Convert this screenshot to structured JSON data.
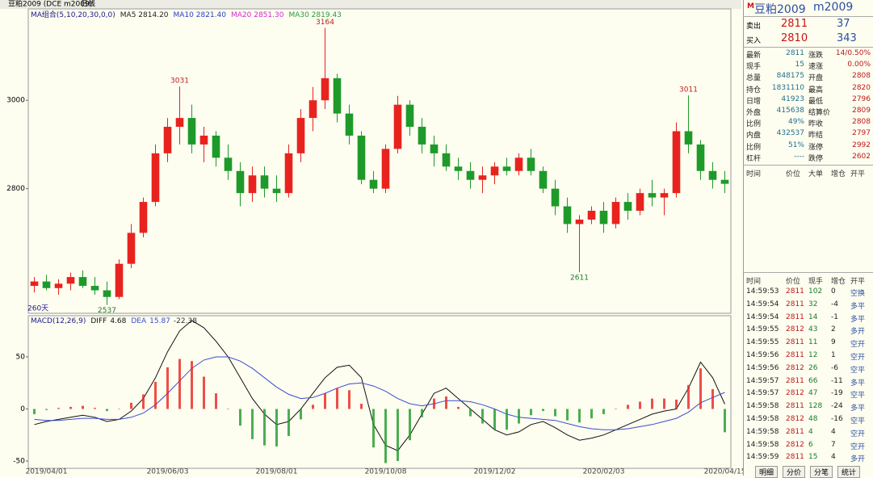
{
  "toolbar": {
    "symbol": "豆粕2009 (DCE m2009)",
    "period": "日线"
  },
  "chart_data": [
    {
      "type": "candlestick",
      "ma_labels": [
        {
          "label": "MA组合(5,10,20,30,0,0)",
          "color": "#1a1a8c"
        },
        {
          "label": "MA5 2814.20",
          "color": "#222222"
        },
        {
          "label": "MA10 2821.40",
          "color": "#2b3fc4"
        },
        {
          "label": "MA20 2851.30",
          "color": "#d22bd2"
        },
        {
          "label": "MA30 2819.43",
          "color": "#2a9a3a"
        }
      ],
      "period_label": "260天",
      "categories": [
        null,
        "2019/04/01",
        null,
        null,
        null,
        null,
        null,
        null,
        null,
        null,
        null,
        "2019/06/03",
        null,
        null,
        null,
        null,
        null,
        null,
        null,
        null,
        "2019/08/01",
        null,
        null,
        null,
        null,
        null,
        null,
        null,
        null,
        "2019/10/08",
        null,
        null,
        null,
        null,
        null,
        null,
        null,
        null,
        "2019/12/02",
        null,
        null,
        null,
        null,
        null,
        null,
        null,
        null,
        "2020/02/03",
        null,
        null,
        null,
        null,
        null,
        null,
        null,
        null,
        null,
        "2020/04/15"
      ],
      "open": [
        2580,
        2590,
        2575,
        2585,
        2600,
        2580,
        2570,
        2555,
        2630,
        2700,
        2770,
        2880,
        2940,
        2960,
        2900,
        2920,
        2870,
        2840,
        2790,
        2830,
        2800,
        2790,
        2880,
        2960,
        3000,
        3050,
        2970,
        2920,
        2820,
        2800,
        2890,
        2990,
        2940,
        2900,
        2880,
        2850,
        2840,
        2820,
        2830,
        2850,
        2840,
        2870,
        2840,
        2800,
        2760,
        2720,
        2730,
        2750,
        2720,
        2770,
        2750,
        2790,
        2780,
        2790,
        2930,
        2900,
        2840,
        2820
      ],
      "high": [
        2600,
        2605,
        2595,
        2610,
        2615,
        2600,
        2590,
        2640,
        2720,
        2780,
        2900,
        2960,
        3031,
        2990,
        2940,
        2930,
        2900,
        2860,
        2850,
        2850,
        2830,
        2900,
        2980,
        3030,
        3164,
        3060,
        2990,
        2930,
        2840,
        2900,
        3010,
        3000,
        2960,
        2920,
        2900,
        2870,
        2860,
        2850,
        2860,
        2870,
        2880,
        2890,
        2850,
        2820,
        2780,
        2740,
        2760,
        2770,
        2780,
        2790,
        2800,
        2820,
        2800,
        2950,
        3011,
        2910,
        2860,
        2840
      ],
      "low": [
        2565,
        2570,
        2560,
        2570,
        2575,
        2560,
        2537,
        2550,
        2620,
        2690,
        2760,
        2860,
        2900,
        2880,
        2860,
        2850,
        2820,
        2760,
        2770,
        2780,
        2770,
        2780,
        2860,
        2930,
        2980,
        2950,
        2900,
        2810,
        2790,
        2790,
        2880,
        2920,
        2880,
        2850,
        2840,
        2820,
        2800,
        2790,
        2810,
        2830,
        2830,
        2830,
        2790,
        2740,
        2700,
        2611,
        2720,
        2700,
        2710,
        2730,
        2740,
        2760,
        2740,
        2780,
        2880,
        2820,
        2800,
        2790
      ],
      "close": [
        2590,
        2575,
        2585,
        2600,
        2580,
        2570,
        2555,
        2630,
        2700,
        2770,
        2880,
        2940,
        2960,
        2900,
        2920,
        2870,
        2840,
        2790,
        2830,
        2800,
        2790,
        2880,
        2960,
        3000,
        3050,
        2970,
        2920,
        2820,
        2800,
        2890,
        2990,
        2940,
        2900,
        2880,
        2850,
        2840,
        2820,
        2830,
        2850,
        2840,
        2870,
        2840,
        2800,
        2760,
        2720,
        2730,
        2750,
        2720,
        2770,
        2750,
        2790,
        2780,
        2790,
        2930,
        2900,
        2840,
        2820,
        2811
      ],
      "up_color": "#e8231f",
      "down_color": "#1e9a2a",
      "ylim": [
        2518,
        3205
      ],
      "yticks": [
        2800,
        3000
      ]
    },
    {
      "type": "macd",
      "title": "MACD(12,26,9)",
      "series": [
        {
          "name": "DIFF",
          "type": "line",
          "color": "#111111",
          "values": [
            -15,
            -12,
            -10,
            -8,
            -6,
            -8,
            -12,
            -10,
            -2,
            10,
            30,
            55,
            75,
            85,
            78,
            65,
            50,
            30,
            10,
            -5,
            -15,
            -12,
            0,
            15,
            30,
            40,
            42,
            30,
            -15,
            -35,
            -40,
            -25,
            -5,
            15,
            20,
            10,
            0,
            -10,
            -20,
            -25,
            -22,
            -15,
            -12,
            -18,
            -25,
            -30,
            -28,
            -25,
            -20,
            -15,
            -10,
            -5,
            -2,
            0,
            20,
            45,
            30,
            4.68
          ]
        },
        {
          "name": "DEA",
          "type": "line",
          "color": "#3a4ccf",
          "values": [
            -10,
            -11,
            -11,
            -10,
            -9,
            -9,
            -10,
            -10,
            -8,
            -4,
            4,
            15,
            27,
            39,
            47,
            50,
            50,
            46,
            39,
            30,
            21,
            14,
            10,
            11,
            15,
            20,
            24,
            25,
            22,
            17,
            10,
            5,
            3,
            5,
            8,
            8,
            7,
            4,
            0,
            -5,
            -8,
            -9,
            -10,
            -11,
            -14,
            -17,
            -19,
            -20,
            -20,
            -19,
            -17,
            -15,
            -12,
            -9,
            -3,
            6,
            11,
            15.87
          ]
        },
        {
          "type": "bar",
          "up_color": "#e8231f",
          "down_color": "#1e9a2a",
          "values": [
            -5,
            -1,
            1,
            2,
            3,
            1,
            -2,
            0,
            6,
            14,
            26,
            40,
            48,
            46,
            31,
            15,
            0,
            -16,
            -29,
            -35,
            -36,
            -26,
            -10,
            4,
            15,
            20,
            18,
            5,
            -37,
            -52,
            -50,
            -30,
            -8,
            10,
            12,
            2,
            -7,
            -14,
            -20,
            -20,
            -14,
            -6,
            -2,
            -7,
            -11,
            -13,
            -9,
            -5,
            0,
            4,
            7,
            10,
            10,
            9,
            23,
            39,
            19,
            -22.38
          ]
        }
      ],
      "ylim": [
        -57,
        88
      ],
      "yticks": [
        -50,
        0,
        50
      ]
    }
  ],
  "quote": {
    "mark": "M",
    "title": "豆粕2009",
    "code": "m2009",
    "ask": [
      "卖出",
      "2811",
      "37"
    ],
    "bid": [
      "买入",
      "2810",
      "343"
    ],
    "fields": [
      [
        "最新",
        "2811",
        "涨跌",
        "14/0.50%"
      ],
      [
        "现手",
        "15",
        "速涨",
        "0.00%"
      ],
      [
        "总量",
        "848175",
        "开盘",
        "2808"
      ],
      [
        "持仓",
        "1831110",
        "最高",
        "2820"
      ],
      [
        "日增",
        "41923",
        "最低",
        "2796"
      ],
      [
        "外盘",
        "415638",
        "结算价",
        "2809"
      ],
      [
        "比例",
        "49%",
        "昨收",
        "2808"
      ],
      [
        "内盘",
        "432537",
        "昨结",
        "2797"
      ],
      [
        "比例",
        "51%",
        "涨停",
        "2992"
      ],
      [
        "杠杆",
        "----",
        "跌停",
        "2602"
      ]
    ],
    "big_header": [
      "时间",
      "价位",
      "大单",
      "增仓",
      "开平"
    ],
    "tick_header": [
      "时间",
      "价位",
      "现手",
      "增仓",
      "开平"
    ],
    "ticks": [
      [
        "14:59:53",
        "2811",
        "102",
        "0",
        "空换"
      ],
      [
        "14:59:54",
        "2811",
        "32",
        "-4",
        "多平"
      ],
      [
        "14:59:54",
        "2811",
        "14",
        "-1",
        "多平"
      ],
      [
        "14:59:55",
        "2812",
        "43",
        "2",
        "多开"
      ],
      [
        "14:59:55",
        "2811",
        "11",
        "9",
        "空开"
      ],
      [
        "14:59:56",
        "2811",
        "12",
        "1",
        "空开"
      ],
      [
        "14:59:56",
        "2812",
        "26",
        "-6",
        "空平"
      ],
      [
        "14:59:57",
        "2811",
        "66",
        "-11",
        "多平"
      ],
      [
        "14:59:57",
        "2812",
        "47",
        "-19",
        "空平"
      ],
      [
        "14:59:58",
        "2811",
        "128",
        "-24",
        "多平"
      ],
      [
        "14:59:58",
        "2812",
        "48",
        "-16",
        "空平"
      ],
      [
        "14:59:58",
        "2811",
        "4",
        "4",
        "空开"
      ],
      [
        "14:59:58",
        "2812",
        "6",
        "7",
        "空开"
      ],
      [
        "14:59:59",
        "2811",
        "15",
        "4",
        "多开"
      ]
    ],
    "tabs": [
      "明细",
      "分价",
      "分笔",
      "统计"
    ]
  }
}
